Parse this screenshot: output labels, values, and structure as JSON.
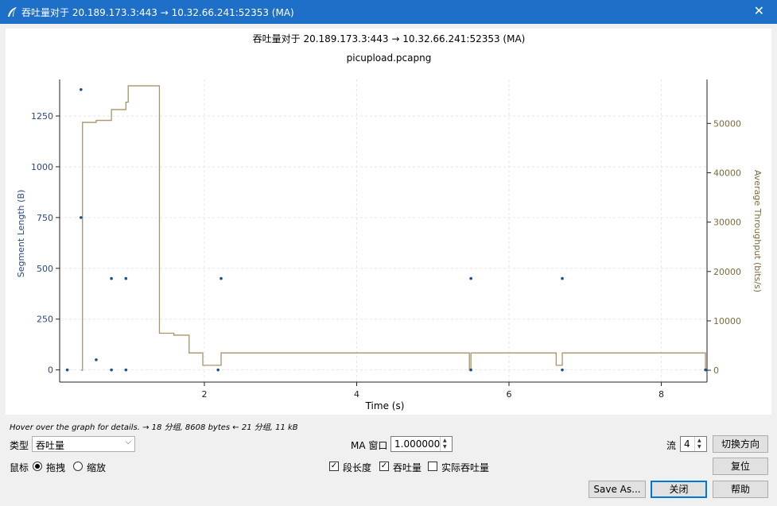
{
  "window": {
    "title": "吞吐量对于 20.189.173.3:443 → 10.32.66.241:52353 (MA)",
    "close_glyph": "✕"
  },
  "chart_data": {
    "type": "line",
    "title": "吞吐量对于 20.189.173.3:443 → 10.32.66.241:52353 (MA)",
    "subtitle": "picupload.pcapng",
    "xlabel": "Time (s)",
    "ylabel": "Segment Length (B)",
    "y2label": "Average Throughput (bits/s)",
    "xlim": [
      0.1,
      8.6
    ],
    "ylim": [
      -60,
      1430
    ],
    "y2lim": [
      -2400,
      58900
    ],
    "xticks": [
      2,
      4,
      6,
      8
    ],
    "yticks": [
      0,
      250,
      500,
      750,
      1000,
      1250
    ],
    "y2ticks": [
      0,
      10000,
      20000,
      30000,
      40000,
      50000
    ],
    "grid": true,
    "colors": {
      "segments": "#1f4e8c",
      "throughput": "#a89468",
      "left_axis": "#2b4a7a",
      "right_axis": "#7a6a3a"
    },
    "series": [
      {
        "type": "scatter",
        "axis": "left",
        "x": [
          0.2,
          0.38,
          0.38,
          0.58,
          0.78,
          0.78,
          0.97,
          0.97,
          2.18,
          2.22,
          5.5,
          5.5,
          6.7,
          6.7,
          8.58
        ],
        "y": [
          0,
          1380,
          750,
          50,
          450,
          0,
          450,
          0,
          0,
          450,
          450,
          0,
          450,
          0,
          0
        ]
      },
      {
        "type": "step",
        "axis": "right",
        "x": [
          0.38,
          0.4,
          0.58,
          0.75,
          0.78,
          0.97,
          1.0,
          1.38,
          1.41,
          1.6,
          1.8,
          1.98,
          2.18,
          2.22,
          3.22,
          5.48,
          5.5,
          6.48,
          6.62,
          6.68,
          6.7,
          7.68,
          8.58
        ],
        "y": [
          0,
          50200,
          50600,
          50600,
          52800,
          54300,
          57600,
          57600,
          7500,
          7100,
          3500,
          1000,
          1000,
          3500,
          3500,
          0,
          3500,
          3500,
          1000,
          1000,
          3500,
          3500,
          0
        ]
      }
    ]
  },
  "hint": "Hover over the graph for details. → 18 分组, 8608 bytes ← 21 分组, 11 kB",
  "controls": {
    "type_label": "类型",
    "type_value": "吞吐量",
    "ma_label": "MA 窗口",
    "ma_value": "1.000000",
    "stream_label": "流",
    "stream_value": "4",
    "switch_direction": "切换方向",
    "mouse_label": "鼠标",
    "mouse_drag": "拖拽",
    "mouse_zoom": "缩放",
    "reset": "复位",
    "cb_segment": "段长度",
    "cb_throughput": "吞吐量",
    "cb_goodput": "实际吞吐量",
    "save_as": "Save As...",
    "close": "关闭",
    "help": "帮助"
  }
}
